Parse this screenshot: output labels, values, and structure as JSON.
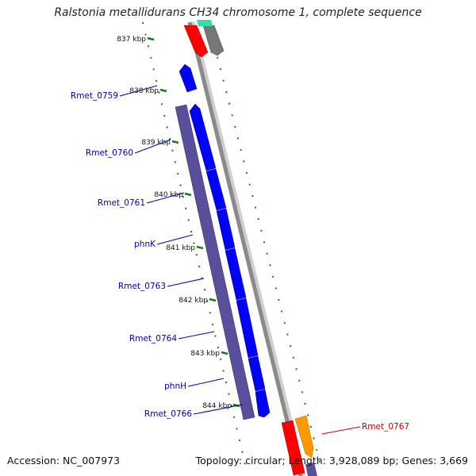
{
  "title": "Ralstonia metallidurans CH34 chromosome 1, complete sequence",
  "footer": {
    "accession": "Accession: NC_007973",
    "topology": "Topology: circular; Length: 3,928,089 bp; Genes: 3,669"
  },
  "colors": {
    "backbone": "#8a8a8a",
    "tick": "#1a7a1a",
    "outer_gene": "#5a4f9a",
    "inner_gene": "#0000ff",
    "label_blue": "#0000aa",
    "label_red": "#cc0000",
    "gene_red": "#ff0000",
    "gene_gray": "#777777",
    "gene_teal": "#33ddaa",
    "gene_orange": "#ff9900"
  },
  "ticks": [
    "837 kbp",
    "838 kbp",
    "839 kbp",
    "840 kbp",
    "841 kbp",
    "842 kbp",
    "843 kbp",
    "844 kbp"
  ],
  "gene_labels": [
    {
      "name": "Rmet_0759",
      "color": "blue"
    },
    {
      "name": "Rmet_0760",
      "color": "blue"
    },
    {
      "name": "Rmet_0761",
      "color": "blue"
    },
    {
      "name": "phnK",
      "color": "blue"
    },
    {
      "name": "Rmet_0763",
      "color": "blue"
    },
    {
      "name": "Rmet_0764",
      "color": "blue"
    },
    {
      "name": "phnH",
      "color": "blue"
    },
    {
      "name": "Rmet_0766",
      "color": "blue"
    },
    {
      "name": "Rmet_0767",
      "color": "red"
    }
  ]
}
